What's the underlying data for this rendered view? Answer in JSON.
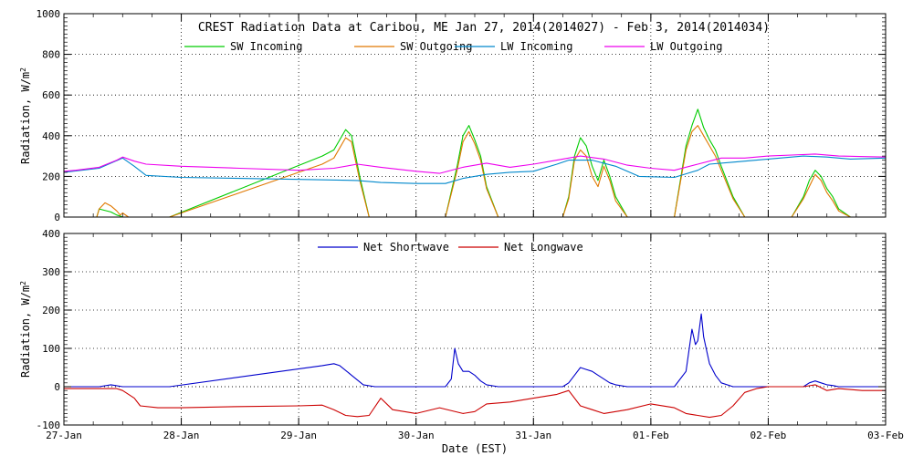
{
  "title": "CREST Radiation Data at Caribou, ME   Jan 27, 2014(2014027) - Feb  3, 2014(2014034)",
  "xlabel": "Date (EST)",
  "x_tick_labels": [
    "27-Jan",
    "28-Jan",
    "29-Jan",
    "30-Jan",
    "31-Jan",
    "01-Feb",
    "02-Feb",
    "03-Feb"
  ],
  "colors": {
    "sw_in": "#00cc00",
    "sw_out": "#e07800",
    "lw_in": "#0088cc",
    "lw_out": "#ee00ee",
    "net_sw": "#0000cc",
    "net_lw": "#cc0000"
  },
  "chart_data": [
    {
      "type": "line",
      "title": "CREST Radiation Data at Caribou, ME   Jan 27, 2014(2014027) - Feb  3, 2014(2014034)",
      "xlabel": "",
      "ylabel": "Radiation, W/m^2",
      "xlim": [
        0,
        7
      ],
      "ylim": [
        0,
        1000
      ],
      "yticks": [
        0,
        200,
        400,
        600,
        800,
        1000
      ],
      "legend": "top",
      "series": [
        {
          "name": "SW Incoming",
          "key": "sw_in",
          "x": [
            0.0,
            0.28,
            0.3,
            0.4,
            0.45,
            0.48,
            0.5,
            0.55,
            0.6,
            0.63,
            0.65,
            0.9,
            2.2,
            2.3,
            2.4,
            2.45,
            2.52,
            2.6,
            2.7,
            3.0,
            3.25,
            3.35,
            3.4,
            3.45,
            3.5,
            3.55,
            3.6,
            3.7,
            4.0,
            4.25,
            4.3,
            4.35,
            4.4,
            4.45,
            4.5,
            4.55,
            4.6,
            4.65,
            4.7,
            4.8,
            5.0,
            5.2,
            5.3,
            5.35,
            5.4,
            5.45,
            5.5,
            5.55,
            5.6,
            5.7,
            5.8,
            6.0,
            6.2,
            6.3,
            6.35,
            6.4,
            6.45,
            6.5,
            6.55,
            6.6,
            6.7,
            7.0
          ],
          "y": [
            0,
            0,
            40,
            25,
            10,
            5,
            0,
            0,
            0,
            0,
            0,
            0,
            300,
            330,
            430,
            400,
            200,
            0,
            0,
            0,
            0,
            250,
            400,
            450,
            380,
            300,
            150,
            0,
            0,
            0,
            100,
            300,
            390,
            350,
            250,
            180,
            280,
            200,
            100,
            0,
            0,
            0,
            350,
            450,
            530,
            440,
            380,
            330,
            250,
            100,
            0,
            0,
            0,
            100,
            180,
            230,
            200,
            140,
            100,
            40,
            0,
            0
          ]
        },
        {
          "name": "SW Outgoing",
          "key": "sw_out",
          "x": [
            0.0,
            0.28,
            0.3,
            0.35,
            0.4,
            0.45,
            0.48,
            0.5,
            0.55,
            0.6,
            0.63,
            0.65,
            0.9,
            2.2,
            2.3,
            2.4,
            2.45,
            2.52,
            2.6,
            2.7,
            3.0,
            3.25,
            3.35,
            3.4,
            3.45,
            3.5,
            3.55,
            3.6,
            3.7,
            4.0,
            4.25,
            4.3,
            4.35,
            4.4,
            4.45,
            4.5,
            4.55,
            4.6,
            4.65,
            4.7,
            4.8,
            5.0,
            5.2,
            5.3,
            5.35,
            5.4,
            5.45,
            5.5,
            5.55,
            5.6,
            5.7,
            5.8,
            6.0,
            6.2,
            6.3,
            6.35,
            6.4,
            6.45,
            6.5,
            6.55,
            6.6,
            6.7,
            7.0
          ],
          "y": [
            0,
            0,
            40,
            70,
            55,
            30,
            10,
            20,
            0,
            0,
            0,
            0,
            0,
            260,
            290,
            390,
            370,
            180,
            0,
            0,
            0,
            0,
            230,
            370,
            420,
            360,
            280,
            140,
            0,
            0,
            0,
            90,
            280,
            330,
            300,
            200,
            150,
            250,
            180,
            80,
            0,
            0,
            0,
            330,
            420,
            450,
            400,
            350,
            300,
            230,
            90,
            0,
            0,
            0,
            90,
            150,
            210,
            180,
            120,
            80,
            30,
            0,
            0
          ]
        },
        {
          "name": "LW Incoming",
          "key": "lw_in",
          "x": [
            0.0,
            0.15,
            0.3,
            0.4,
            0.5,
            0.6,
            0.7,
            1.0,
            1.5,
            2.0,
            2.5,
            2.7,
            3.0,
            3.25,
            3.4,
            3.6,
            3.8,
            4.0,
            4.2,
            4.3,
            4.5,
            4.7,
            4.9,
            5.2,
            5.4,
            5.5,
            5.7,
            5.9,
            6.1,
            6.3,
            6.5,
            6.7,
            7.0
          ],
          "y": [
            220,
            230,
            240,
            265,
            290,
            250,
            205,
            195,
            190,
            185,
            180,
            170,
            165,
            165,
            190,
            210,
            220,
            225,
            260,
            280,
            280,
            250,
            200,
            195,
            230,
            260,
            270,
            280,
            290,
            300,
            295,
            285,
            290
          ]
        },
        {
          "name": "LW Outgoing",
          "key": "lw_out",
          "x": [
            0.0,
            0.1,
            0.3,
            0.45,
            0.5,
            0.6,
            0.7,
            1.0,
            1.5,
            2.0,
            2.3,
            2.5,
            2.7,
            3.0,
            3.2,
            3.4,
            3.6,
            3.8,
            4.0,
            4.2,
            4.4,
            4.6,
            4.8,
            5.0,
            5.2,
            5.4,
            5.6,
            5.8,
            6.0,
            6.2,
            6.4,
            6.6,
            7.0
          ],
          "y": [
            225,
            230,
            245,
            280,
            295,
            275,
            260,
            250,
            240,
            230,
            240,
            260,
            245,
            225,
            215,
            245,
            265,
            245,
            260,
            280,
            300,
            285,
            255,
            240,
            230,
            260,
            290,
            290,
            300,
            305,
            310,
            300,
            295
          ]
        }
      ]
    },
    {
      "type": "line",
      "title": "",
      "xlabel": "Date (EST)",
      "ylabel": "Radiation, W/m^2",
      "xlim": [
        0,
        7
      ],
      "ylim": [
        -100,
        400
      ],
      "yticks": [
        -100,
        0,
        100,
        200,
        300,
        400
      ],
      "legend": "top",
      "series": [
        {
          "name": "Net Shortwave",
          "key": "net_sw",
          "x": [
            0.0,
            0.3,
            0.4,
            0.5,
            0.6,
            0.65,
            0.9,
            2.2,
            2.3,
            2.35,
            2.45,
            2.55,
            2.65,
            3.0,
            3.25,
            3.3,
            3.33,
            3.36,
            3.4,
            3.45,
            3.5,
            3.55,
            3.6,
            3.7,
            4.0,
            4.25,
            4.3,
            4.35,
            4.4,
            4.45,
            4.5,
            4.55,
            4.6,
            4.65,
            4.7,
            4.8,
            5.0,
            5.2,
            5.3,
            5.35,
            5.38,
            5.4,
            5.43,
            5.45,
            5.5,
            5.55,
            5.6,
            5.7,
            5.8,
            6.0,
            6.3,
            6.35,
            6.4,
            6.45,
            6.5,
            6.55,
            6.6,
            6.7,
            7.0
          ],
          "y": [
            0,
            0,
            5,
            0,
            0,
            0,
            0,
            55,
            60,
            55,
            30,
            5,
            0,
            0,
            0,
            20,
            100,
            60,
            40,
            40,
            30,
            15,
            5,
            0,
            0,
            0,
            10,
            30,
            50,
            45,
            40,
            30,
            20,
            10,
            5,
            0,
            0,
            0,
            40,
            150,
            110,
            120,
            190,
            130,
            60,
            30,
            10,
            0,
            0,
            0,
            0,
            10,
            15,
            10,
            5,
            3,
            0,
            0,
            0
          ]
        },
        {
          "name": "Net Longwave",
          "key": "net_lw",
          "x": [
            0.0,
            0.3,
            0.45,
            0.5,
            0.6,
            0.65,
            0.8,
            1.0,
            1.5,
            2.0,
            2.2,
            2.3,
            2.4,
            2.5,
            2.6,
            2.7,
            2.8,
            2.9,
            3.0,
            3.2,
            3.4,
            3.5,
            3.6,
            3.8,
            4.0,
            4.2,
            4.3,
            4.4,
            4.5,
            4.6,
            4.8,
            5.0,
            5.2,
            5.3,
            5.4,
            5.5,
            5.6,
            5.7,
            5.8,
            5.9,
            6.0,
            6.2,
            6.3,
            6.4,
            6.5,
            6.6,
            6.8,
            7.0
          ],
          "y": [
            -5,
            -5,
            -5,
            -10,
            -30,
            -50,
            -55,
            -55,
            -52,
            -50,
            -48,
            -60,
            -75,
            -78,
            -75,
            -30,
            -60,
            -65,
            -70,
            -55,
            -70,
            -65,
            -45,
            -40,
            -30,
            -20,
            -10,
            -50,
            -60,
            -70,
            -60,
            -45,
            -55,
            -70,
            -75,
            -80,
            -75,
            -50,
            -15,
            -5,
            0,
            0,
            0,
            5,
            -10,
            -5,
            -10,
            -10
          ]
        }
      ]
    }
  ]
}
